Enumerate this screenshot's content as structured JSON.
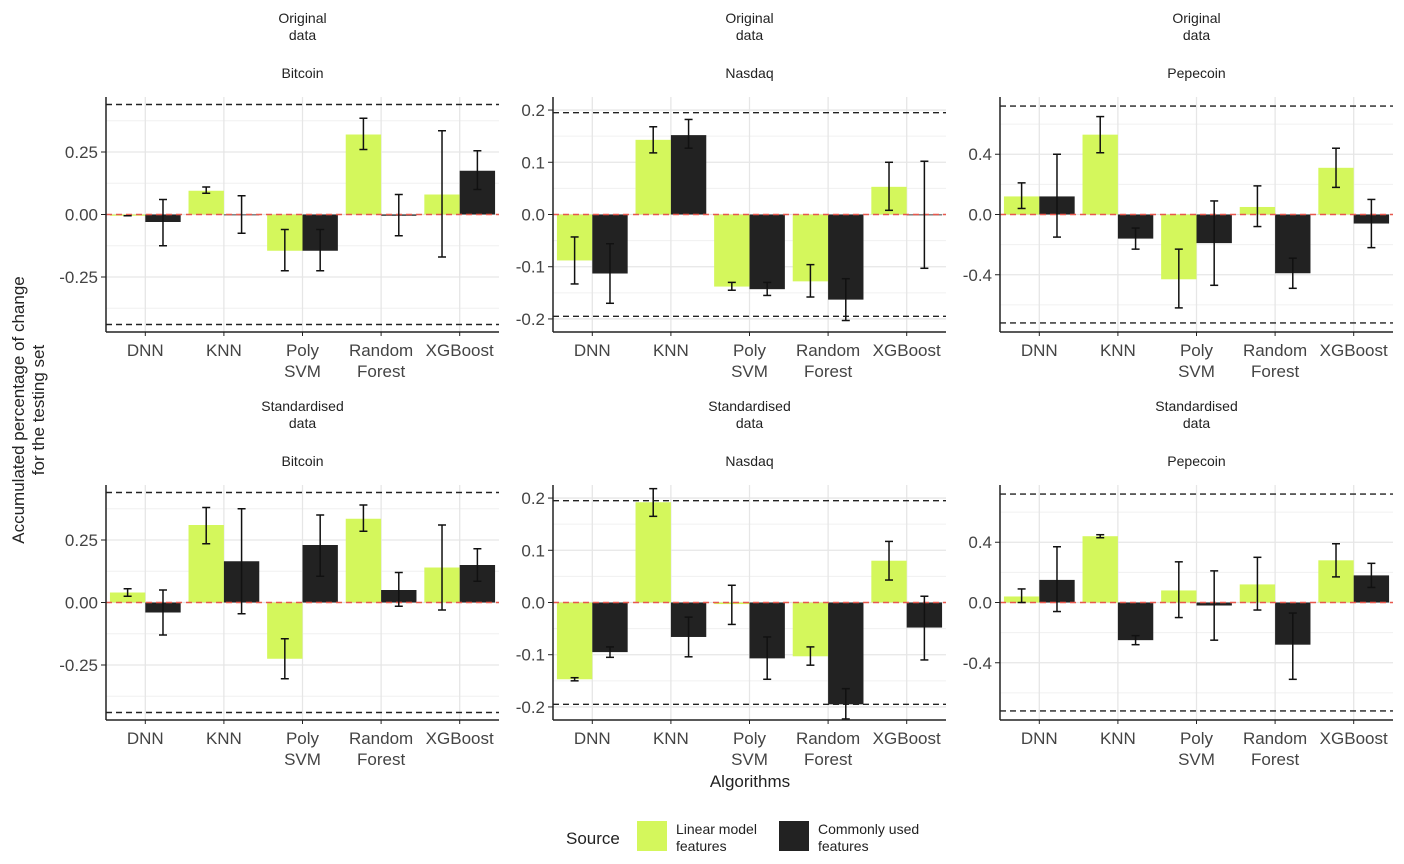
{
  "figure": {
    "ylabel_lines": [
      "Accumulated percentage of change",
      "for the testing set"
    ],
    "xlabel": "Algorithms",
    "legend": {
      "title": "Source",
      "position": "bottom",
      "items": [
        {
          "lines": [
            "Linear model",
            "features"
          ],
          "color": "#d4f75c"
        },
        {
          "lines": [
            "Commonly used",
            "features"
          ],
          "color": "#222222"
        }
      ]
    },
    "colors": {
      "linear": "#d4f75c",
      "common": "#222222",
      "zero_line": "#e8584e",
      "bounds": "#222222"
    }
  },
  "chart_data": [
    {
      "type": "bar",
      "row_strip": [
        "Original",
        "data"
      ],
      "market": "Bitcoin",
      "categories": [
        "DNN",
        "KNN",
        "Poly SVM",
        "Random Forest",
        "XGBoost"
      ],
      "ylim": [
        -0.47,
        0.47
      ],
      "yticks": [
        -0.25,
        0,
        0.25
      ],
      "ytick_labels": [
        "-0.25",
        "0.00",
        "0.25"
      ],
      "bounds": [
        -0.44,
        0.44
      ],
      "series": [
        {
          "name": "Linear model features",
          "values": [
            -0.005,
            0.095,
            -0.145,
            0.32,
            0.08
          ],
          "err_low": [
            -0.005,
            0.085,
            -0.225,
            0.26,
            -0.17
          ],
          "err_high": [
            -0.005,
            0.11,
            -0.06,
            0.385,
            0.335
          ]
        },
        {
          "name": "Commonly used features",
          "values": [
            -0.03,
            0.0,
            -0.145,
            -0.005,
            0.175
          ],
          "err_low": [
            -0.125,
            -0.075,
            -0.225,
            -0.085,
            0.1
          ],
          "err_high": [
            0.06,
            0.075,
            -0.06,
            0.08,
            0.255
          ]
        }
      ]
    },
    {
      "type": "bar",
      "row_strip": [
        "Original",
        "data"
      ],
      "market": "Nasdaq",
      "categories": [
        "DNN",
        "KNN",
        "Poly SVM",
        "Random Forest",
        "XGBoost"
      ],
      "ylim": [
        -0.225,
        0.225
      ],
      "yticks": [
        -0.2,
        -0.1,
        0,
        0.1,
        0.2
      ],
      "ytick_labels": [
        "-0.2",
        "-0.1",
        "0.0",
        "0.1",
        "0.2"
      ],
      "bounds": [
        -0.195,
        0.195
      ],
      "series": [
        {
          "name": "Linear model features",
          "values": [
            -0.088,
            0.143,
            -0.138,
            -0.128,
            0.053
          ],
          "err_low": [
            -0.133,
            0.118,
            -0.145,
            -0.158,
            0.008
          ],
          "err_high": [
            -0.043,
            0.168,
            -0.13,
            -0.096,
            0.1
          ]
        },
        {
          "name": "Commonly used features",
          "values": [
            -0.113,
            0.152,
            -0.143,
            -0.163,
            0.0
          ],
          "err_low": [
            -0.17,
            0.127,
            -0.155,
            -0.203,
            -0.103
          ],
          "err_high": [
            -0.056,
            0.182,
            -0.13,
            -0.123,
            0.102
          ]
        }
      ]
    },
    {
      "type": "bar",
      "row_strip": [
        "Original",
        "data"
      ],
      "market": "Pepecoin",
      "categories": [
        "DNN",
        "KNN",
        "Poly SVM",
        "Random Forest",
        "XGBoost"
      ],
      "ylim": [
        -0.78,
        0.78
      ],
      "yticks": [
        -0.4,
        0,
        0.4
      ],
      "ytick_labels": [
        "-0.4",
        "0.0",
        "0.4"
      ],
      "bounds": [
        -0.72,
        0.72
      ],
      "series": [
        {
          "name": "Linear model features",
          "values": [
            0.12,
            0.53,
            -0.43,
            0.05,
            0.31
          ],
          "err_low": [
            0.04,
            0.41,
            -0.62,
            -0.08,
            0.18
          ],
          "err_high": [
            0.21,
            0.65,
            -0.23,
            0.19,
            0.44
          ]
        },
        {
          "name": "Commonly used features",
          "values": [
            0.12,
            -0.16,
            -0.19,
            -0.39,
            -0.06
          ],
          "err_low": [
            -0.15,
            -0.23,
            -0.47,
            -0.49,
            -0.22
          ],
          "err_high": [
            0.4,
            -0.09,
            0.09,
            -0.29,
            0.1
          ]
        }
      ]
    },
    {
      "type": "bar",
      "row_strip": [
        "Standardised",
        "data"
      ],
      "market": "Bitcoin",
      "categories": [
        "DNN",
        "KNN",
        "Poly SVM",
        "Random Forest",
        "XGBoost"
      ],
      "ylim": [
        -0.47,
        0.47
      ],
      "yticks": [
        -0.25,
        0,
        0.25
      ],
      "ytick_labels": [
        "-0.25",
        "0.00",
        "0.25"
      ],
      "bounds": [
        -0.44,
        0.44
      ],
      "series": [
        {
          "name": "Linear model features",
          "values": [
            0.04,
            0.31,
            -0.225,
            0.335,
            0.14
          ],
          "err_low": [
            0.025,
            0.235,
            -0.305,
            0.285,
            -0.03
          ],
          "err_high": [
            0.055,
            0.38,
            -0.145,
            0.39,
            0.31
          ]
        },
        {
          "name": "Commonly used features",
          "values": [
            -0.04,
            0.165,
            0.23,
            0.05,
            0.15
          ],
          "err_low": [
            -0.13,
            -0.045,
            0.105,
            -0.015,
            0.085
          ],
          "err_high": [
            0.05,
            0.375,
            0.35,
            0.12,
            0.215
          ]
        }
      ]
    },
    {
      "type": "bar",
      "row_strip": [
        "Standardised",
        "data"
      ],
      "market": "Nasdaq",
      "categories": [
        "DNN",
        "KNN",
        "Poly SVM",
        "Random Forest",
        "XGBoost"
      ],
      "ylim": [
        -0.225,
        0.225
      ],
      "yticks": [
        -0.2,
        -0.1,
        0,
        0.1,
        0.2
      ],
      "ytick_labels": [
        "-0.2",
        "-0.1",
        "0.0",
        "0.1",
        "0.2"
      ],
      "bounds": [
        -0.195,
        0.195
      ],
      "series": [
        {
          "name": "Linear model features",
          "values": [
            -0.147,
            0.192,
            -0.003,
            -0.103,
            0.08
          ],
          "err_low": [
            -0.15,
            0.165,
            -0.042,
            -0.12,
            0.043
          ],
          "err_high": [
            -0.144,
            0.218,
            0.033,
            -0.085,
            0.117
          ]
        },
        {
          "name": "Commonly used features",
          "values": [
            -0.095,
            -0.066,
            -0.107,
            -0.195,
            -0.048
          ],
          "err_low": [
            -0.105,
            -0.104,
            -0.147,
            -0.223,
            -0.11
          ],
          "err_high": [
            -0.085,
            -0.028,
            -0.066,
            -0.165,
            0.012
          ]
        }
      ]
    },
    {
      "type": "bar",
      "row_strip": [
        "Standardised",
        "data"
      ],
      "market": "Pepecoin",
      "categories": [
        "DNN",
        "KNN",
        "Poly SVM",
        "Random Forest",
        "XGBoost"
      ],
      "ylim": [
        -0.78,
        0.78
      ],
      "yticks": [
        -0.4,
        0,
        0.4
      ],
      "ytick_labels": [
        "-0.4",
        "0.0",
        "0.4"
      ],
      "bounds": [
        -0.72,
        0.72
      ],
      "series": [
        {
          "name": "Linear model features",
          "values": [
            0.04,
            0.44,
            0.08,
            0.12,
            0.28
          ],
          "err_low": [
            0.0,
            0.43,
            -0.1,
            -0.05,
            0.17
          ],
          "err_high": [
            0.09,
            0.45,
            0.27,
            0.3,
            0.39
          ]
        },
        {
          "name": "Commonly used features",
          "values": [
            0.15,
            -0.25,
            -0.02,
            -0.28,
            0.18
          ],
          "err_low": [
            -0.06,
            -0.28,
            -0.25,
            -0.51,
            0.1
          ],
          "err_high": [
            0.37,
            -0.22,
            0.21,
            -0.07,
            0.26
          ]
        }
      ]
    }
  ]
}
